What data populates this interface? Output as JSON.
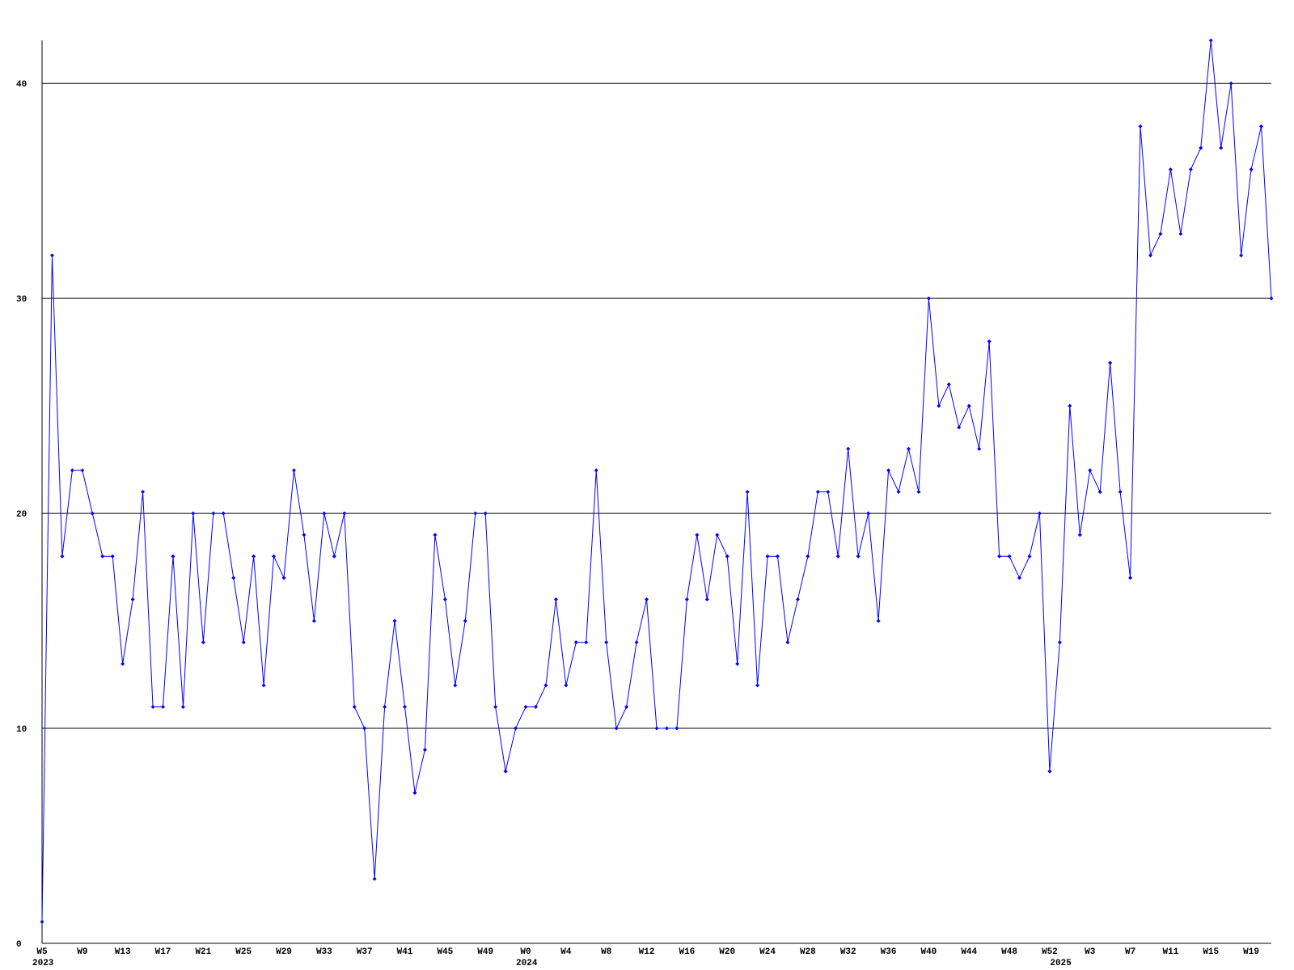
{
  "chart_data": {
    "type": "line",
    "categories": [
      "W5",
      null,
      null,
      null,
      "W9",
      null,
      null,
      null,
      "W13",
      null,
      null,
      null,
      "W17",
      null,
      null,
      null,
      "W21",
      null,
      null,
      null,
      "W25",
      null,
      null,
      null,
      "W29",
      null,
      null,
      null,
      "W33",
      null,
      null,
      null,
      "W37",
      null,
      null,
      null,
      "W41",
      null,
      null,
      null,
      "W45",
      null,
      null,
      null,
      "W49",
      null,
      null,
      null,
      "W0",
      null,
      null,
      null,
      "W4",
      null,
      null,
      null,
      "W8",
      null,
      null,
      null,
      "W12",
      null,
      null,
      null,
      "W16",
      null,
      null,
      null,
      "W20",
      null,
      null,
      null,
      "W24",
      null,
      null,
      null,
      "W28",
      null,
      null,
      null,
      "W32",
      null,
      null,
      null,
      "W36",
      null,
      null,
      null,
      "W40",
      null,
      null,
      null,
      "W44",
      null,
      null,
      null,
      "W48",
      null,
      null,
      null,
      "W52",
      null,
      null,
      null,
      "W3",
      null,
      null,
      null,
      "W7",
      null,
      null,
      null,
      "W11",
      null,
      null,
      null,
      "W15",
      null,
      null,
      null,
      "W19",
      null,
      null
    ],
    "x_group_labels": [
      "2023",
      null,
      null,
      null,
      null,
      null,
      null,
      null,
      null,
      null,
      null,
      null,
      null,
      null,
      null,
      null,
      null,
      null,
      null,
      null,
      null,
      null,
      null,
      null,
      null,
      null,
      null,
      null,
      null,
      null,
      null,
      null,
      null,
      null,
      null,
      null,
      null,
      null,
      null,
      null,
      null,
      null,
      null,
      null,
      null,
      null,
      null,
      null,
      "2024",
      null,
      null,
      null,
      null,
      null,
      null,
      null,
      null,
      null,
      null,
      null,
      null,
      null,
      null,
      null,
      null,
      null,
      null,
      null,
      null,
      null,
      null,
      null,
      null,
      null,
      null,
      null,
      null,
      null,
      null,
      null,
      null,
      null,
      null,
      null,
      null,
      null,
      null,
      null,
      null,
      null,
      null,
      null,
      null,
      null,
      null,
      null,
      null,
      null,
      null,
      null,
      null,
      "2025",
      null,
      null,
      null,
      null,
      null,
      null,
      null,
      null,
      null,
      null,
      null,
      null,
      null,
      null,
      null,
      null,
      null,
      null,
      null,
      null,
      null
    ],
    "series": [
      {
        "color": "#0000ff",
        "values": [
          1,
          32,
          18,
          22,
          22,
          20,
          18,
          18,
          13,
          16,
          21,
          11,
          11,
          18,
          11,
          20,
          14,
          20,
          20,
          17,
          14,
          18,
          12,
          18,
          17,
          22,
          19,
          15,
          20,
          18,
          20,
          11,
          10,
          3,
          11,
          15,
          11,
          7,
          9,
          19,
          16,
          12,
          15,
          20,
          20,
          11,
          8,
          10,
          11,
          11,
          12,
          16,
          12,
          14,
          14,
          22,
          14,
          10,
          11,
          14,
          16,
          10,
          10,
          10,
          16,
          19,
          16,
          19,
          18,
          13,
          21,
          12,
          18,
          18,
          14,
          16,
          18,
          21,
          21,
          18,
          23,
          18,
          20,
          15,
          22,
          21,
          23,
          21,
          30,
          25,
          26,
          24,
          25,
          23,
          28,
          18,
          18,
          17,
          18,
          20,
          8,
          14,
          25,
          19,
          22,
          21,
          27,
          21,
          17,
          38,
          32,
          33,
          36,
          33,
          36,
          37,
          42,
          37,
          40,
          32,
          36,
          38,
          30
        ]
      }
    ],
    "ylim": [
      0,
      42
    ],
    "yticks": [
      0,
      10,
      20,
      30,
      40
    ],
    "grid": true
  }
}
